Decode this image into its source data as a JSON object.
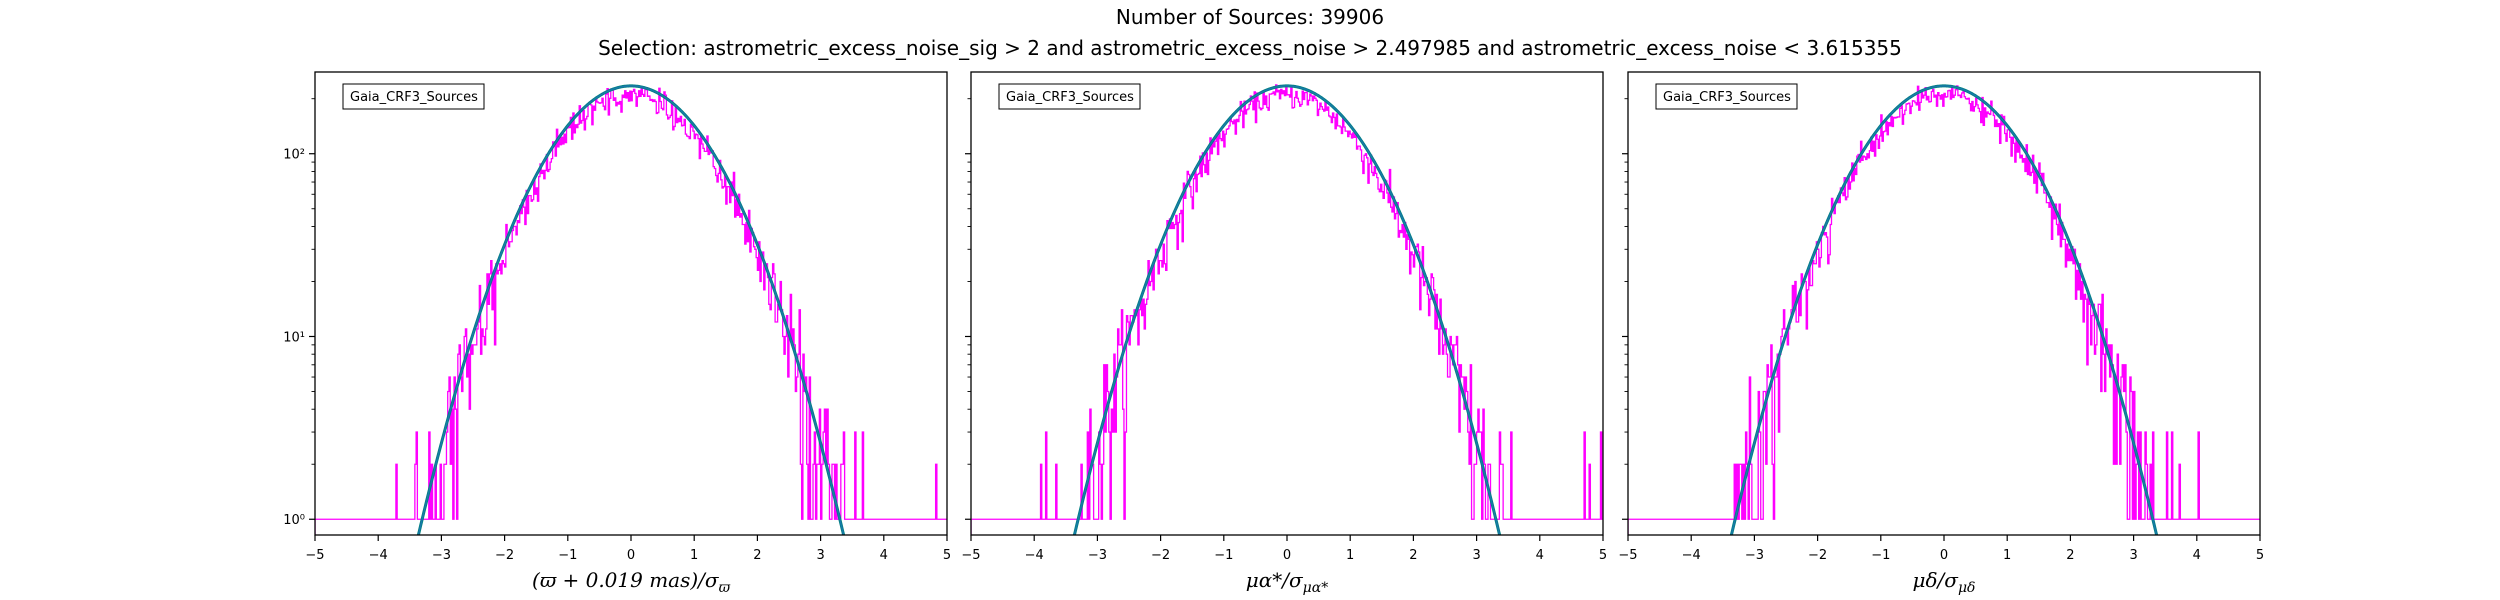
{
  "figure": {
    "title": "Number of Sources: 39906",
    "subtitle": "Selection: astrometric_excess_noise_sig > 2 and astrometric_excess_noise > 2.497985 and astrometric_excess_noise < 3.615355"
  },
  "colors": {
    "histogram": "#ff00ff",
    "gaussian_fill": "#008080",
    "gaussian_line": "#1f77b4"
  },
  "chart_data": [
    {
      "type": "line",
      "legend": "Gaia_CRF3_Sources",
      "legend_placement": "top-left",
      "xlabel": "(ϖ + 0.019 mas)/σϖ",
      "xlabel_parts": {
        "main": "(ϖ + 0.019 mas)/σ",
        "sub": "ϖ"
      },
      "xlim": [
        -5,
        5
      ],
      "ylim": [
        0.82,
        280
      ],
      "yscale": "log",
      "xticks": [
        -5,
        -4,
        -3,
        -2,
        -1,
        0,
        1,
        2,
        3,
        4,
        5
      ],
      "yticks": [
        {
          "value": 1,
          "label": "10⁰"
        },
        {
          "value": 10,
          "label": "10¹"
        },
        {
          "value": 100,
          "label": "10²"
        }
      ],
      "grid": false,
      "gaussian_peak": 235,
      "histogram_peak": 210,
      "histogram_range": [
        -5,
        5
      ]
    },
    {
      "type": "line",
      "legend": "Gaia_CRF3_Sources",
      "legend_placement": "top-left",
      "xlabel": "μα*/σμα*",
      "xlabel_parts": {
        "main": "μα*/σ",
        "sub": "μα*"
      },
      "xlim": [
        -5,
        5
      ],
      "ylim": [
        0.82,
        280
      ],
      "yscale": "log",
      "xticks": [
        -5,
        -4,
        -3,
        -2,
        -1,
        0,
        1,
        2,
        3,
        4,
        5
      ],
      "yticks": [
        {
          "value": 1,
          "label": ""
        },
        {
          "value": 10,
          "label": ""
        },
        {
          "value": 100,
          "label": ""
        }
      ],
      "grid": false,
      "gaussian_peak": 235,
      "histogram_peak": 210,
      "histogram_range": [
        -5,
        5
      ]
    },
    {
      "type": "line",
      "legend": "Gaia_CRF3_Sources",
      "legend_placement": "top-left",
      "xlabel": "μδ/σμδ",
      "xlabel_parts": {
        "main": "μδ/σ",
        "sub": "μδ"
      },
      "xlim": [
        -5,
        5
      ],
      "ylim": [
        0.82,
        280
      ],
      "yscale": "log",
      "xticks": [
        -5,
        -4,
        -3,
        -2,
        -1,
        0,
        1,
        2,
        3,
        4,
        5
      ],
      "yticks": [
        {
          "value": 1,
          "label": ""
        },
        {
          "value": 10,
          "label": ""
        },
        {
          "value": 100,
          "label": ""
        }
      ],
      "grid": false,
      "gaussian_peak": 235,
      "histogram_peak": 210,
      "histogram_range": [
        -5,
        5
      ]
    }
  ]
}
